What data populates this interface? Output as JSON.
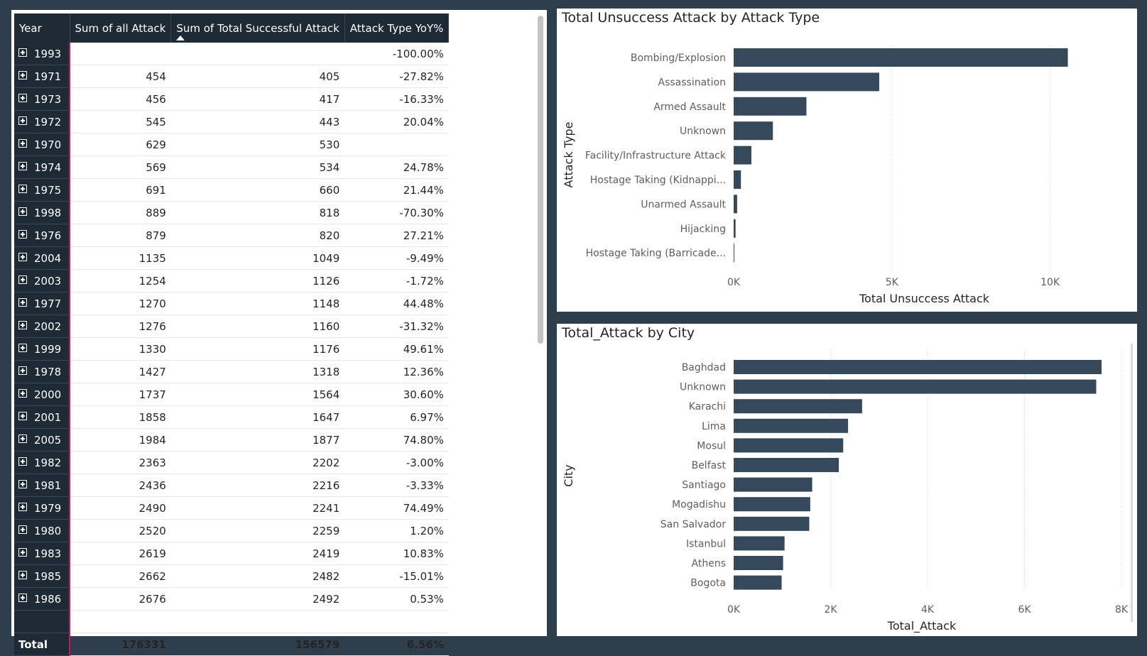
{
  "table": {
    "headers": [
      "Year",
      "Sum of all Attack",
      "Sum of Total Successful Attack",
      "Attack Type YoY%"
    ],
    "rows": [
      [
        "1993",
        "",
        "",
        "-100.00%"
      ],
      [
        "1971",
        "454",
        "405",
        "-27.82%"
      ],
      [
        "1973",
        "456",
        "417",
        "-16.33%"
      ],
      [
        "1972",
        "545",
        "443",
        "20.04%"
      ],
      [
        "1970",
        "629",
        "530",
        ""
      ],
      [
        "1974",
        "569",
        "534",
        "24.78%"
      ],
      [
        "1975",
        "691",
        "660",
        "21.44%"
      ],
      [
        "1998",
        "889",
        "818",
        "-70.30%"
      ],
      [
        "1976",
        "879",
        "820",
        "27.21%"
      ],
      [
        "2004",
        "1135",
        "1049",
        "-9.49%"
      ],
      [
        "2003",
        "1254",
        "1126",
        "-1.72%"
      ],
      [
        "1977",
        "1270",
        "1148",
        "44.48%"
      ],
      [
        "2002",
        "1276",
        "1160",
        "-31.32%"
      ],
      [
        "1999",
        "1330",
        "1176",
        "49.61%"
      ],
      [
        "1978",
        "1427",
        "1318",
        "12.36%"
      ],
      [
        "2000",
        "1737",
        "1564",
        "30.60%"
      ],
      [
        "2001",
        "1858",
        "1647",
        "6.97%"
      ],
      [
        "2005",
        "1984",
        "1877",
        "74.80%"
      ],
      [
        "1982",
        "2363",
        "2202",
        "-3.00%"
      ],
      [
        "1981",
        "2436",
        "2216",
        "-3.33%"
      ],
      [
        "1979",
        "2490",
        "2241",
        "74.49%"
      ],
      [
        "1980",
        "2520",
        "2259",
        "1.20%"
      ],
      [
        "1983",
        "2619",
        "2419",
        "10.83%"
      ],
      [
        "1985",
        "2662",
        "2482",
        "-15.01%"
      ],
      [
        "1986",
        "2676",
        "2492",
        "0.53%"
      ]
    ],
    "total": [
      "Total",
      "176331",
      "156579",
      "6.56%"
    ]
  },
  "chart_data": [
    {
      "type": "bar",
      "orientation": "horizontal",
      "title": "Total Unsuccess Attack by Attack Type",
      "xlabel": "Total Unsuccess Attack",
      "ylabel": "Attack Type",
      "categories": [
        "Bombing/Explosion",
        "Assassination",
        "Armed Assault",
        "Unknown",
        "Facility/Infrastructure Attack",
        "Hostage Taking (Kidnappi...",
        "Unarmed Assault",
        "Hijacking",
        "Hostage Taking (Barricade..."
      ],
      "values": [
        10560,
        4600,
        2300,
        1240,
        560,
        230,
        110,
        60,
        20
      ],
      "xlim": [
        0,
        12500
      ],
      "ticks": [
        0,
        5000,
        10000
      ],
      "tick_labels": [
        "0K",
        "5K",
        "10K"
      ],
      "grid": true,
      "color": "#35495a"
    },
    {
      "type": "bar",
      "orientation": "horizontal",
      "title": "Total_Attack by City",
      "xlabel": "Total_Attack",
      "ylabel": "City",
      "categories": [
        "Baghdad",
        "Unknown",
        "Karachi",
        "Lima",
        "Mosul",
        "Belfast",
        "Santiago",
        "Mogadishu",
        "San Salvador",
        "Istanbul",
        "Athens",
        "Bogota"
      ],
      "values": [
        7590,
        7480,
        2650,
        2360,
        2260,
        2170,
        1620,
        1580,
        1560,
        1050,
        1020,
        990
      ],
      "xlim": [
        0,
        8000
      ],
      "ticks": [
        0,
        2000,
        4000,
        6000,
        8000
      ],
      "tick_labels": [
        "0K",
        "2K",
        "4K",
        "6K",
        "8K"
      ],
      "grid": true,
      "color": "#35495a"
    }
  ]
}
